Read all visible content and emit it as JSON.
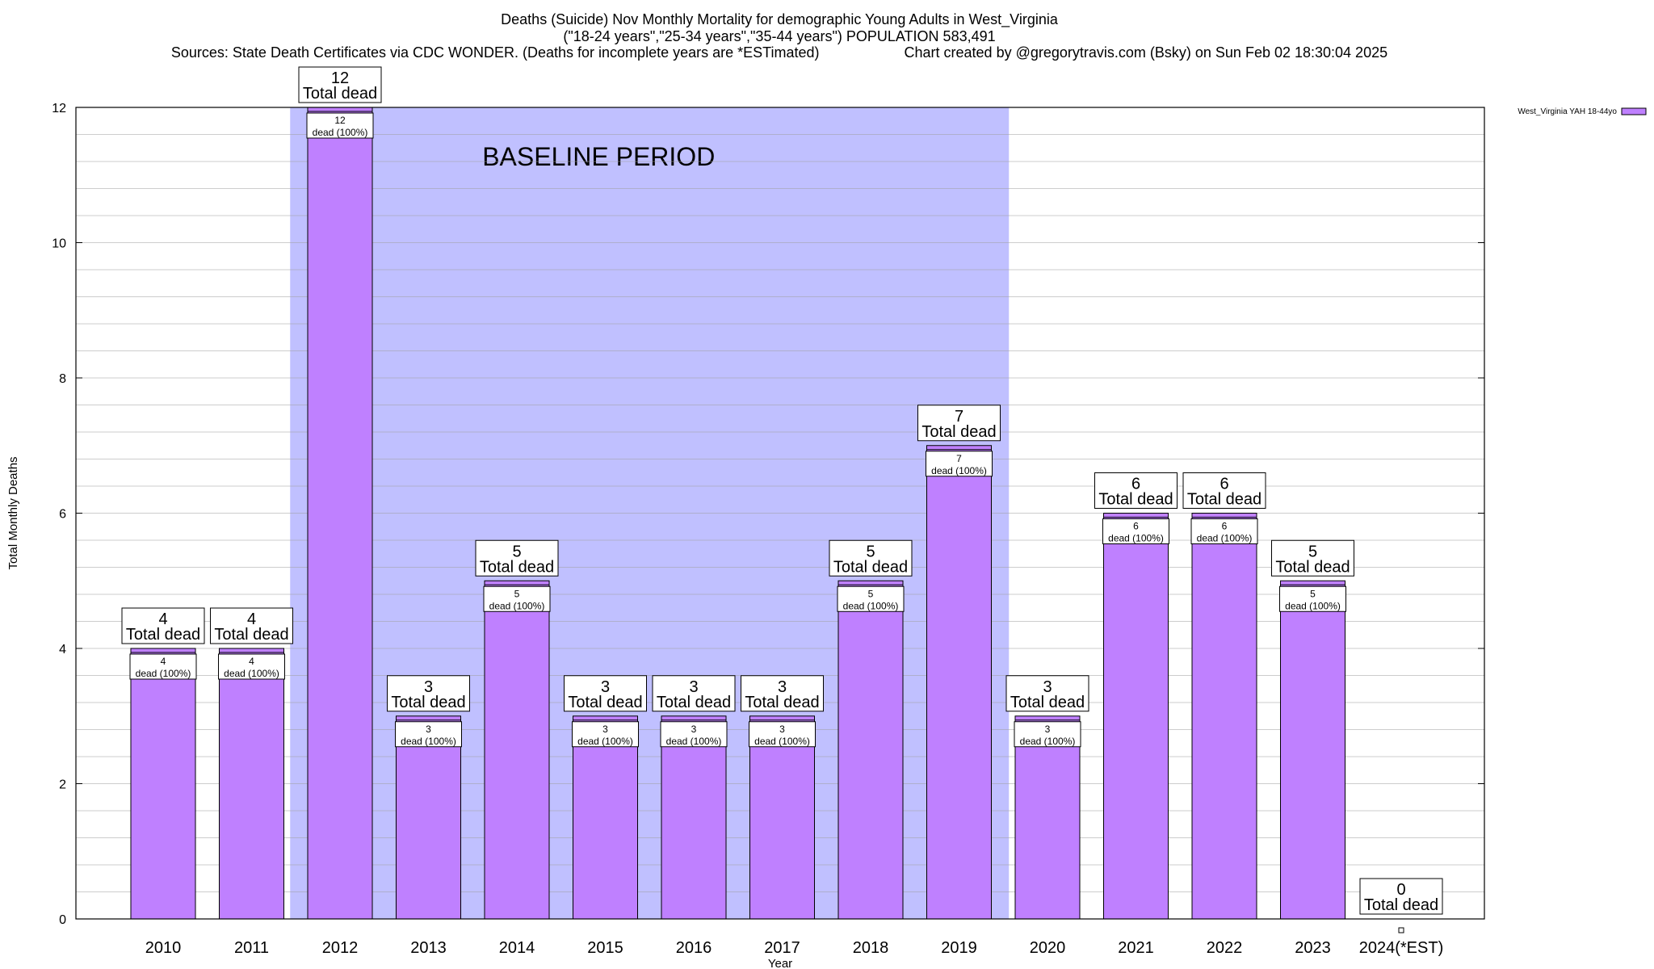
{
  "chart_data": {
    "type": "bar",
    "title_line1": "Deaths (Suicide) Nov Monthly Mortality for demographic Young Adults in West_Virginia",
    "title_line2": "(\"18-24 years\",\"25-34 years\",\"35-44 years\") POPULATION 583,491",
    "sources": "Sources: State Death Certificates via CDC WONDER. (Deaths for incomplete years are *ESTimated)",
    "credit": "Chart created by @gregorytravis.com (Bsky) on Sun Feb 02 18:30:04 2025",
    "xlabel": "Year",
    "ylabel": "Total Monthly Deaths",
    "ylim": [
      0,
      12
    ],
    "yticks": [
      0,
      2,
      4,
      6,
      8,
      10,
      12
    ],
    "grid": true,
    "legend_position": "top-right",
    "categories": [
      "2010",
      "2011",
      "2012",
      "2013",
      "2014",
      "2015",
      "2016",
      "2017",
      "2018",
      "2019",
      "2020",
      "2021",
      "2022",
      "2023",
      "2024(*EST)"
    ],
    "series": [
      {
        "name": "West_Virginia YAH 18-44yo",
        "color": "#bf80ff",
        "values": [
          4,
          4,
          12,
          3,
          5,
          3,
          3,
          3,
          5,
          7,
          3,
          6,
          6,
          5,
          0
        ]
      }
    ],
    "top_label_suffix": "Total dead",
    "inner_label_suffix": "dead (100%)",
    "baseline_region": {
      "label": "BASELINE PERIOD",
      "from": "2012",
      "to": "2019",
      "color": "#c0c0ff"
    }
  }
}
